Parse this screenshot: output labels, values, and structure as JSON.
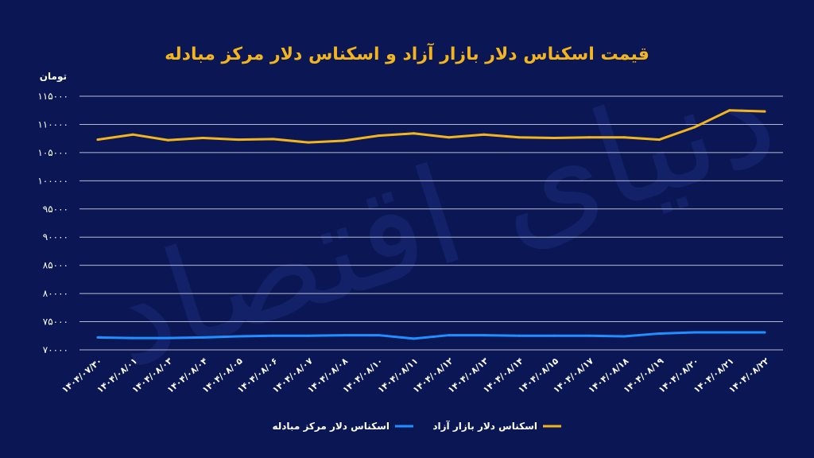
{
  "chart_data": {
    "type": "line",
    "title": "قیمت اسکناس دلار بازار آزاد و اسکناس دلار مرکز مبادله",
    "ylabel": "تومان",
    "watermark": "دنیای اقتصاد",
    "ylim": [
      70000,
      115000
    ],
    "yticks": [
      70000,
      75000,
      80000,
      85000,
      90000,
      95000,
      100000,
      105000,
      110000,
      115000
    ],
    "ytick_labels": [
      "۷۰۰۰۰",
      "۷۵۰۰۰",
      "۸۰۰۰۰",
      "۸۵۰۰۰",
      "۹۰۰۰۰",
      "۹۵۰۰۰",
      "۱۰۰۰۰۰",
      "۱۰۵۰۰۰",
      "۱۱۰۰۰۰",
      "۱۱۵۰۰۰"
    ],
    "categories": [
      "۱۴۰۴/۰۷/۳۰",
      "۱۴۰۴/۰۸/۰۱",
      "۱۴۰۴/۰۸/۰۳",
      "۱۴۰۴/۰۸/۰۴",
      "۱۴۰۴/۰۸/۰۵",
      "۱۴۰۴/۰۸/۰۶",
      "۱۴۰۴/۰۸/۰۷",
      "۱۴۰۴/۰۸/۰۸",
      "۱۴۰۴/۰۸/۱۰",
      "۱۴۰۴/۰۸/۱۱",
      "۱۴۰۴/۰۸/۱۲",
      "۱۴۰۴/۰۸/۱۳",
      "۱۴۰۴/۰۸/۱۴",
      "۱۴۰۴/۰۸/۱۵",
      "۱۴۰۴/۰۸/۱۷",
      "۱۴۰۴/۰۸/۱۸",
      "۱۴۰۴/۰۸/۱۹",
      "۱۴۰۴/۰۸/۲۰",
      "۱۴۰۴/۰۸/۲۱",
      "۱۴۰۴/۰۸/۲۲"
    ],
    "series": [
      {
        "name": "اسکناس دلار بازار آزاد",
        "color": "#f2b51d",
        "values": [
          107300,
          108200,
          107200,
          107600,
          107300,
          107400,
          106800,
          107100,
          108000,
          108400,
          107700,
          108200,
          107700,
          107600,
          107700,
          107700,
          107300,
          109500,
          112500,
          112300
        ]
      },
      {
        "name": "اسکناس دلار مرکز مبادله",
        "color": "#1e90ff",
        "values": [
          72200,
          72100,
          72100,
          72200,
          72400,
          72500,
          72500,
          72600,
          72600,
          72000,
          72600,
          72600,
          72500,
          72500,
          72500,
          72400,
          72900,
          73100,
          73100,
          73100
        ]
      }
    ],
    "legend_position": "bottom",
    "grid": true
  }
}
